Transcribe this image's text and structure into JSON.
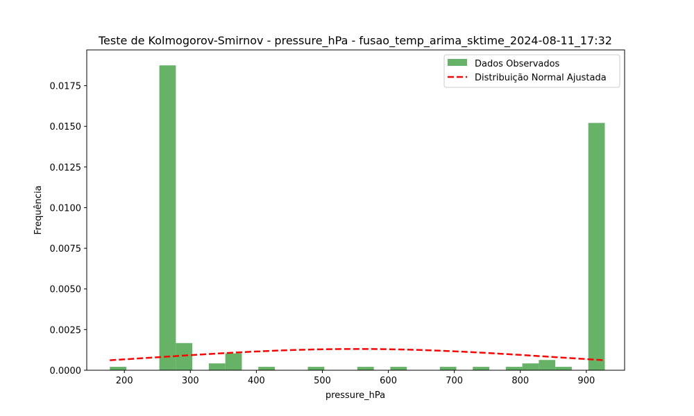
{
  "chart_data": {
    "type": "bar",
    "title": "Teste de Kolmogorov-Smirnov - pressure_hPa - fusao_temp_arima_sktime_2024-08-11_17:32",
    "xlabel": "pressure_hPa",
    "ylabel": "Frequência",
    "xlim": [
      143,
      958
    ],
    "ylim": [
      0,
      0.0197
    ],
    "x_ticks": [
      200,
      300,
      400,
      500,
      600,
      700,
      800,
      900
    ],
    "y_ticks": [
      0.0,
      0.0025,
      0.005,
      0.0075,
      0.01,
      0.0125,
      0.015,
      0.0175
    ],
    "y_tick_labels": [
      "0.0000",
      "0.0025",
      "0.0050",
      "0.0075",
      "0.0100",
      "0.0125",
      "0.0150",
      "0.0175"
    ],
    "grid": false,
    "legend_position": "top-right",
    "histogram": {
      "name": "Dados Observados",
      "color": "#66b266",
      "bin_start": 178,
      "bin_width": 25,
      "values": [
        0.00021,
        0,
        0,
        0.01875,
        0.00167,
        0,
        0.00042,
        0.00104,
        0,
        0.00021,
        0,
        0,
        0.00021,
        0,
        0,
        0.00021,
        0,
        0.00021,
        0,
        0,
        0.00021,
        0,
        0.00021,
        0,
        0.00021,
        0.00042,
        0.00063,
        0.00021,
        0,
        0.01521
      ]
    },
    "normal_fit": {
      "name": "Distribuição Normal Ajustada",
      "color": "#ff0000",
      "x_start": 178,
      "x_end": 928,
      "mean": 553,
      "std": 305
    }
  }
}
